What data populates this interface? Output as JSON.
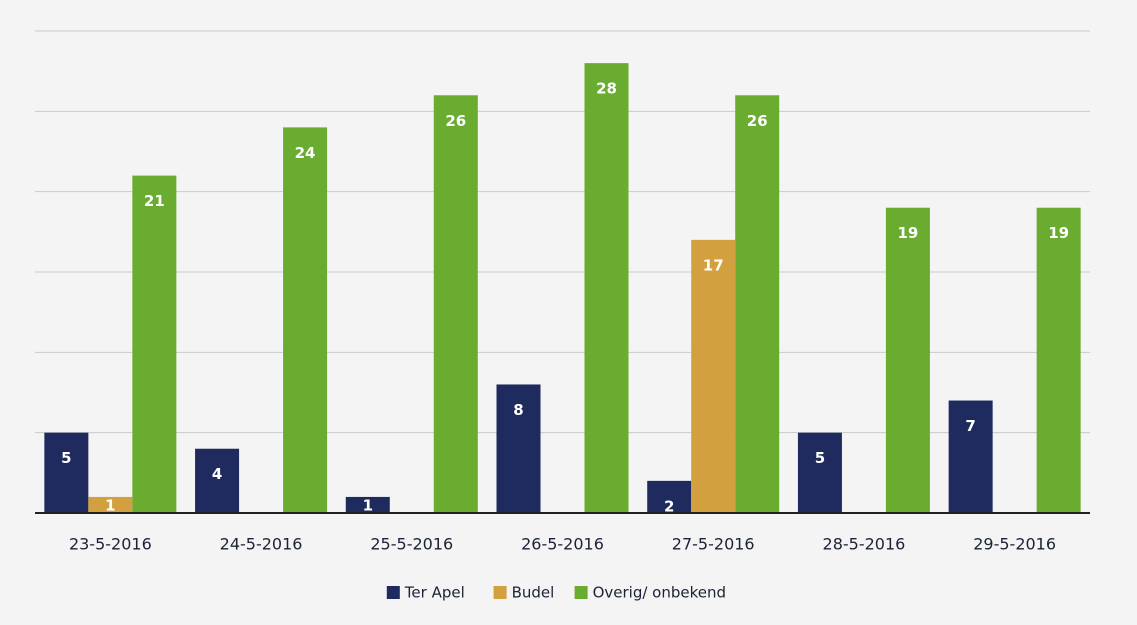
{
  "chart_data": {
    "type": "bar",
    "categories": [
      "23-5-2016",
      "24-5-2016",
      "25-5-2016",
      "26-5-2016",
      "27-5-2016",
      "28-5-2016",
      "29-5-2016"
    ],
    "series": [
      {
        "name": "Ter Apel",
        "color": "#1f2a5e",
        "values": [
          5,
          4,
          1,
          8,
          2,
          5,
          7
        ]
      },
      {
        "name": "Budel",
        "color": "#d3a040",
        "values": [
          1,
          null,
          null,
          null,
          17,
          null,
          null
        ]
      },
      {
        "name": "Overig/ onbekend",
        "color": "#6aac2f",
        "values": [
          21,
          24,
          26,
          28,
          26,
          19,
          19
        ]
      }
    ],
    "ylim": [
      0,
      30
    ],
    "yticks": [
      0,
      5,
      10,
      15,
      20,
      25,
      30
    ],
    "grid": true
  }
}
